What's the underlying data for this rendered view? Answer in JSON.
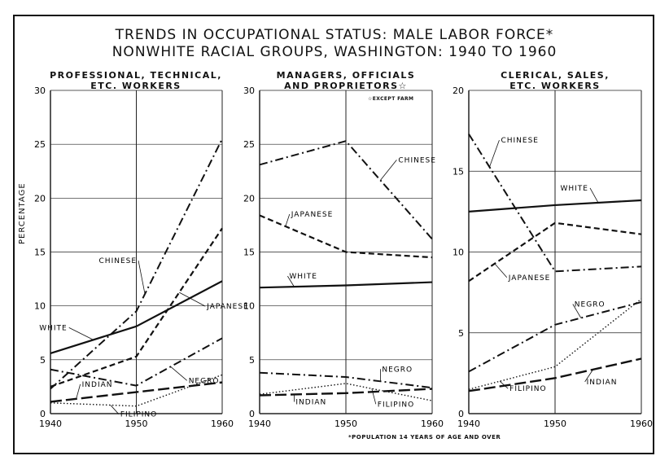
{
  "title_line1": "TRENDS IN OCCUPATIONAL STATUS: MALE LABOR FORCE*",
  "title_line2": "NONWHITE RACIAL GROUPS, WASHINGTON: 1940 TO 1960",
  "ylabel": "PERCENTAGE",
  "footnote": "*POPULATION 14 YEARS OF AGE AND OVER",
  "panel_note": "☆EXCEPT FARM",
  "chart_data": [
    {
      "type": "line",
      "title": "PROFESSIONAL, TECHNICAL, ETC. WORKERS",
      "title_lines": [
        "PROFESSIONAL, TECHNICAL,",
        "ETC. WORKERS"
      ],
      "x": [
        1940,
        1950,
        1960
      ],
      "ylim": [
        0,
        30
      ],
      "yticks": [
        0,
        5,
        10,
        15,
        20,
        25,
        30
      ],
      "series": [
        {
          "name": "CHINESE",
          "values": [
            2.3,
            9.5,
            25.5
          ],
          "style": "dashdot"
        },
        {
          "name": "JAPANESE",
          "values": [
            2.5,
            5.3,
            17.2
          ],
          "style": "dash"
        },
        {
          "name": "WHITE",
          "values": [
            5.6,
            8.1,
            12.3
          ],
          "style": "solid"
        },
        {
          "name": "NEGRO",
          "values": [
            4.1,
            2.6,
            7.0
          ],
          "style": "dashdot"
        },
        {
          "name": "INDIAN",
          "values": [
            1.1,
            2.0,
            2.9
          ],
          "style": "longdash"
        },
        {
          "name": "FILIPINO",
          "values": [
            1.0,
            0.7,
            3.6
          ],
          "style": "dotted"
        }
      ],
      "labels": [
        "CHINESE",
        "JAPANESE",
        "WHITE",
        "NEGRO",
        "INDIAN",
        "FILIPINO"
      ]
    },
    {
      "type": "line",
      "title": "MANAGERS, OFFICIALS AND PROPRIETORS☆",
      "title_lines": [
        "MANAGERS, OFFICIALS",
        "AND PROPRIETORS☆"
      ],
      "x": [
        1940,
        1950,
        1960
      ],
      "ylim": [
        0,
        30
      ],
      "yticks": [
        0,
        5,
        10,
        15,
        20,
        25,
        30
      ],
      "series": [
        {
          "name": "CHINESE",
          "values": [
            23.1,
            25.3,
            16.2
          ],
          "style": "dashdot"
        },
        {
          "name": "JAPANESE",
          "values": [
            18.4,
            15.0,
            14.5
          ],
          "style": "dash"
        },
        {
          "name": "WHITE",
          "values": [
            11.7,
            11.9,
            12.2
          ],
          "style": "solid"
        },
        {
          "name": "NEGRO",
          "values": [
            3.8,
            3.4,
            2.4
          ],
          "style": "dashdot"
        },
        {
          "name": "INDIAN",
          "values": [
            1.7,
            1.9,
            2.3
          ],
          "style": "longdash"
        },
        {
          "name": "FILIPINO",
          "values": [
            1.8,
            2.8,
            1.2
          ],
          "style": "dotted"
        }
      ],
      "labels": [
        "CHINESE",
        "JAPANESE",
        "WHITE",
        "NEGRO",
        "INDIAN",
        "FILIPINO"
      ]
    },
    {
      "type": "line",
      "title": "CLERICAL, SALES, ETC. WORKERS",
      "title_lines": [
        "CLERICAL, SALES,",
        "ETC. WORKERS"
      ],
      "x": [
        1940,
        1950,
        1960
      ],
      "ylim": [
        0,
        20
      ],
      "yticks": [
        0,
        5,
        10,
        15,
        20
      ],
      "series": [
        {
          "name": "CHINESE",
          "values": [
            17.3,
            8.8,
            9.1
          ],
          "style": "dashdot"
        },
        {
          "name": "JAPANESE",
          "values": [
            8.2,
            11.8,
            11.1
          ],
          "style": "dash"
        },
        {
          "name": "WHITE",
          "values": [
            12.5,
            12.9,
            13.2
          ],
          "style": "solid"
        },
        {
          "name": "NEGRO",
          "values": [
            2.6,
            5.5,
            6.9
          ],
          "style": "dashdot"
        },
        {
          "name": "INDIAN",
          "values": [
            1.4,
            2.2,
            3.4
          ],
          "style": "longdash"
        },
        {
          "name": "FILIPINO",
          "values": [
            1.5,
            2.9,
            7.1
          ],
          "style": "dotted"
        }
      ],
      "labels": [
        "CHINESE",
        "WHITE",
        "JAPANESE",
        "NEGRO",
        "FILIPINO",
        "INDIAN"
      ]
    }
  ]
}
